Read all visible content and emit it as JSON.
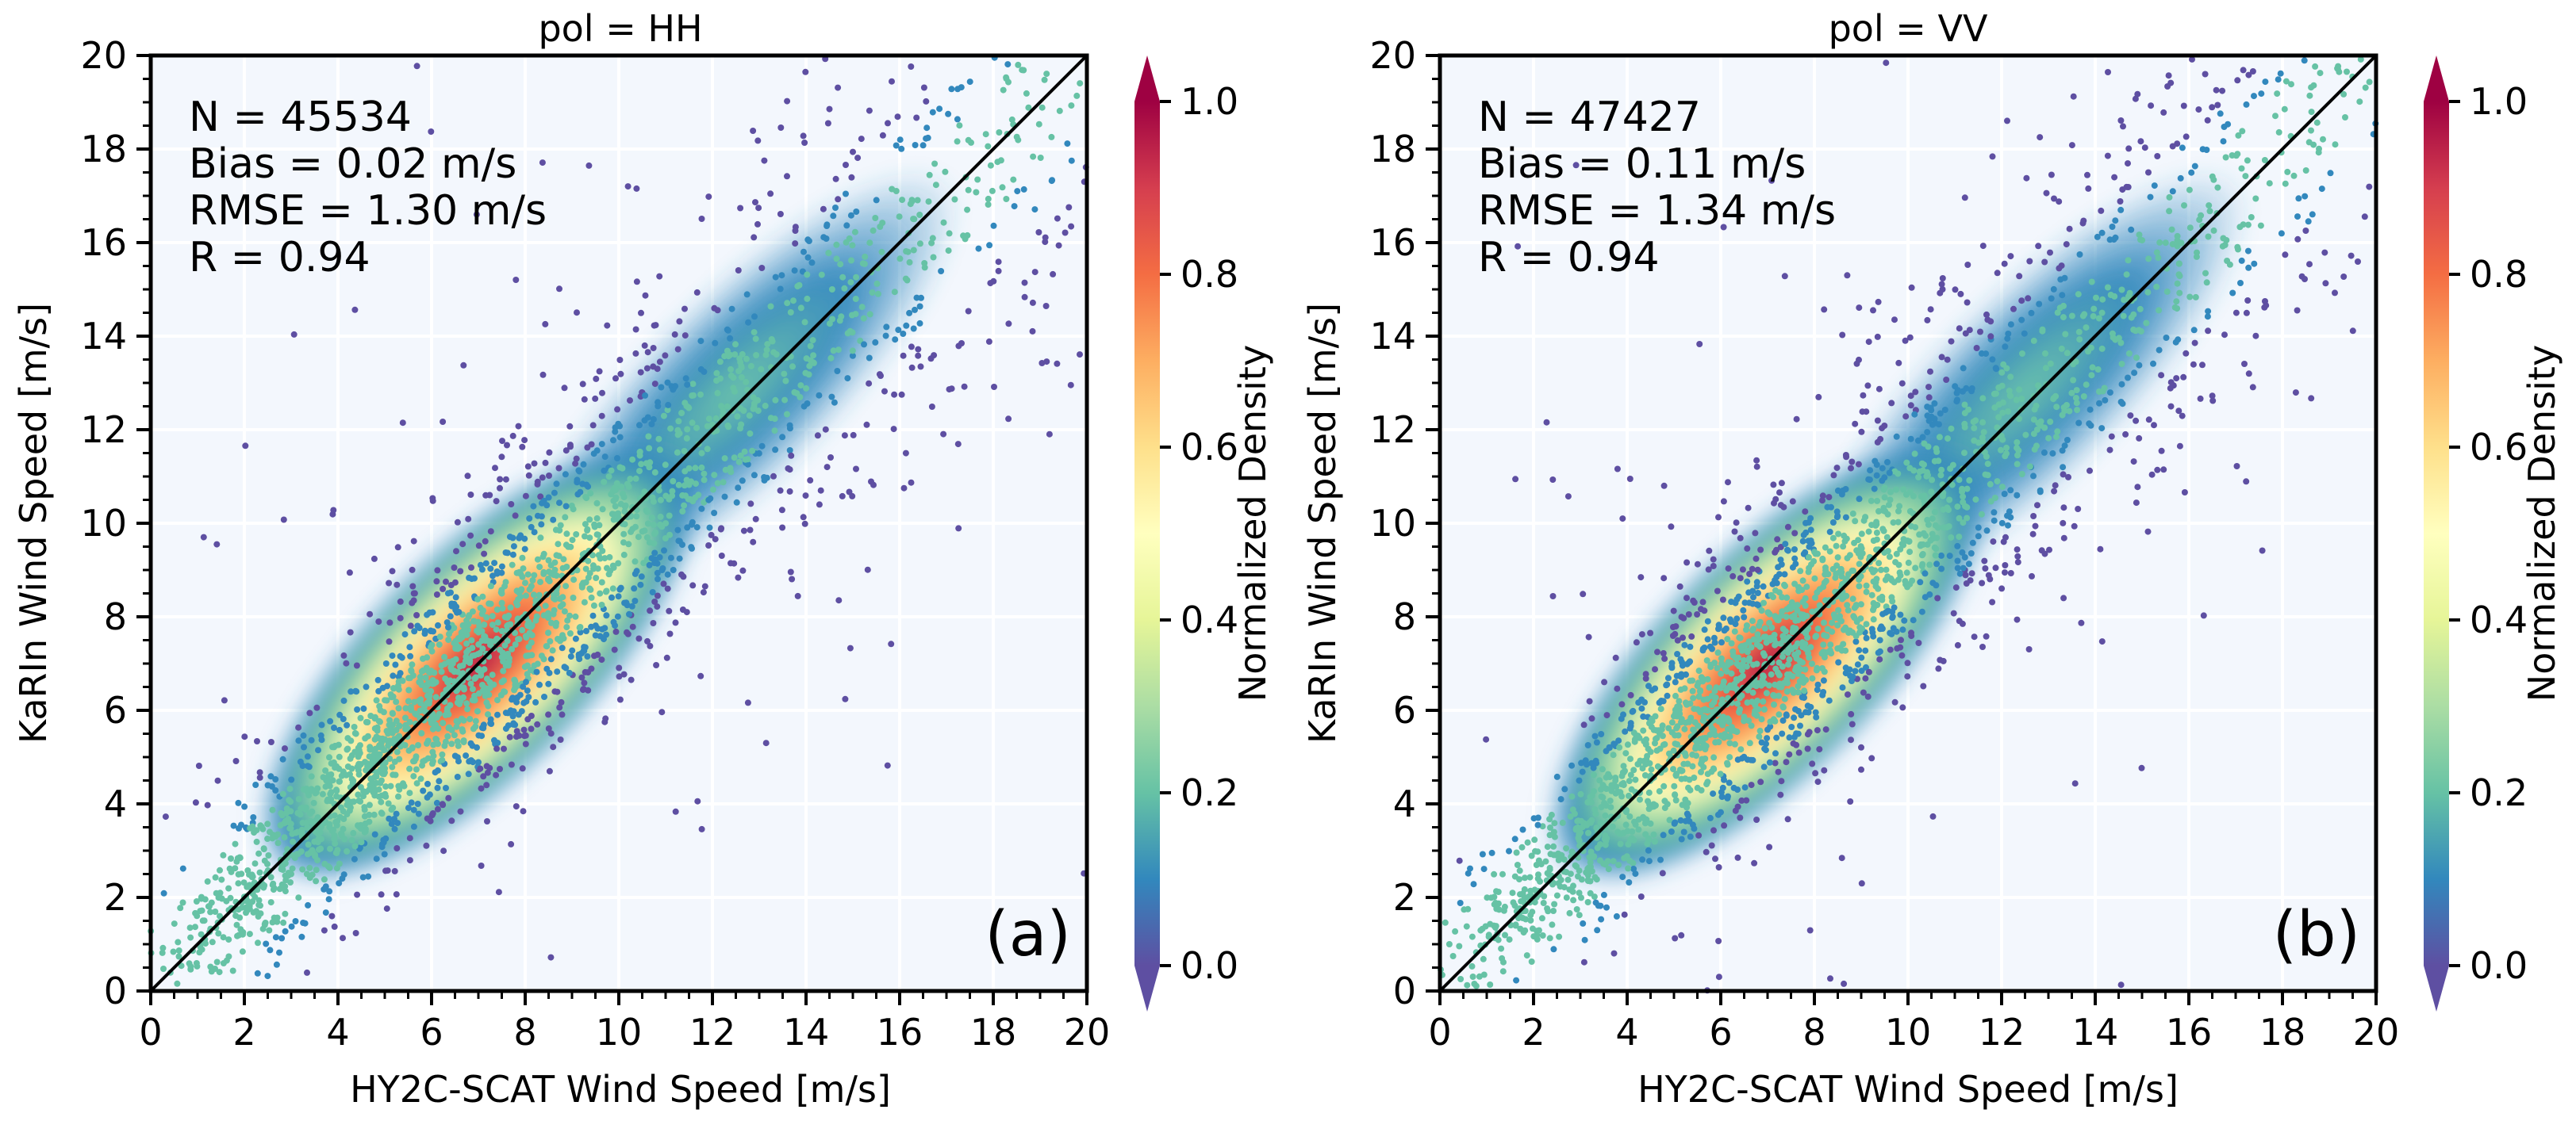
{
  "colors": {
    "background": "#f3f7fd",
    "grid": "#ffffff",
    "identity_line": "#000000",
    "scatter_low": "#5e4fa2",
    "colormap": [
      "#5e4fa2",
      "#3288bd",
      "#66c2a5",
      "#abdda4",
      "#e6f598",
      "#ffffbf",
      "#fee08b",
      "#fdae61",
      "#f46d43",
      "#d53e4f",
      "#9e0142"
    ]
  },
  "colorbar": {
    "label": "Normalized Density",
    "ticks": [
      "0.0",
      "0.2",
      "0.4",
      "0.6",
      "0.8",
      "1.0"
    ],
    "range": [
      0,
      1
    ]
  },
  "chart_data": [
    {
      "type": "scatter",
      "title": "pol = HH",
      "panel_label": "(a)",
      "xlabel": "HY2C-SCAT Wind Speed [m/s]",
      "ylabel": "KaRIn Wind Speed [m/s]",
      "xlim": [
        0,
        20
      ],
      "ylim": [
        0,
        20
      ],
      "xticks": [
        "0",
        "2",
        "4",
        "6",
        "8",
        "10",
        "12",
        "14",
        "16",
        "18",
        "20"
      ],
      "yticks": [
        "0",
        "2",
        "4",
        "6",
        "8",
        "10",
        "12",
        "14",
        "16",
        "18",
        "20"
      ],
      "stats": [
        "N = 45534",
        "Bias = 0.02 m/s",
        "RMSE = 1.30 m/s",
        "R = 0.94"
      ],
      "identity_line": [
        [
          0,
          0
        ],
        [
          20,
          20
        ]
      ],
      "density_ridge": {
        "x": [
          3,
          20
        ],
        "y": [
          3,
          20
        ],
        "peak_x": 7,
        "peak_y": 7
      }
    },
    {
      "type": "scatter",
      "title": "pol = VV",
      "panel_label": "(b)",
      "xlabel": "HY2C-SCAT Wind Speed [m/s]",
      "ylabel": "KaRIn Wind Speed [m/s]",
      "xlim": [
        0,
        20
      ],
      "ylim": [
        0,
        20
      ],
      "xticks": [
        "0",
        "2",
        "4",
        "6",
        "8",
        "10",
        "12",
        "14",
        "16",
        "18",
        "20"
      ],
      "yticks": [
        "0",
        "2",
        "4",
        "6",
        "8",
        "10",
        "12",
        "14",
        "16",
        "18",
        "20"
      ],
      "stats": [
        "N = 47427",
        "Bias = 0.11 m/s",
        "RMSE = 1.34 m/s",
        "R = 0.94"
      ],
      "identity_line": [
        [
          0,
          0
        ],
        [
          20,
          20
        ]
      ],
      "density_ridge": {
        "x": [
          3,
          20
        ],
        "y": [
          3,
          20
        ],
        "peak_x": 7,
        "peak_y": 7
      }
    }
  ]
}
